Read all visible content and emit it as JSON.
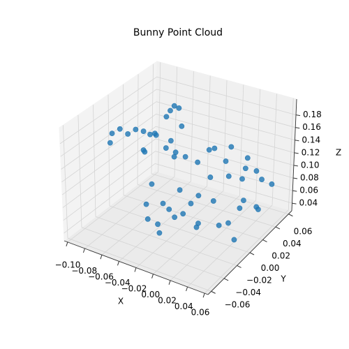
{
  "chart_data": {
    "type": "scatter3d",
    "title": "Bunny Point Cloud",
    "xlabel": "X",
    "ylabel": "Y",
    "zlabel": "Z",
    "color": "#1f77b4",
    "grid": true,
    "xlim": [
      -0.104,
      0.064
    ],
    "ylim": [
      -0.065,
      0.065
    ],
    "zlim": [
      0.028,
      0.205
    ],
    "xticks": [
      {
        "value": -0.1,
        "label": "−0.10"
      },
      {
        "value": -0.08,
        "label": "−0.08"
      },
      {
        "value": -0.06,
        "label": "−0.06"
      },
      {
        "value": -0.04,
        "label": "−0.04"
      },
      {
        "value": -0.02,
        "label": "−0.02"
      },
      {
        "value": 0.0,
        "label": "0.00"
      },
      {
        "value": 0.02,
        "label": "0.02"
      },
      {
        "value": 0.04,
        "label": "0.04"
      },
      {
        "value": 0.06,
        "label": "0.06"
      }
    ],
    "yticks": [
      {
        "value": -0.06,
        "label": "−0.06"
      },
      {
        "value": -0.04,
        "label": "−0.04"
      },
      {
        "value": -0.02,
        "label": "−0.02"
      },
      {
        "value": 0.0,
        "label": "0.00"
      },
      {
        "value": 0.02,
        "label": "0.02"
      },
      {
        "value": 0.04,
        "label": "0.04"
      },
      {
        "value": 0.06,
        "label": "0.06"
      }
    ],
    "zticks": [
      {
        "value": 0.04,
        "label": "0.04"
      },
      {
        "value": 0.06,
        "label": "0.06"
      },
      {
        "value": 0.08,
        "label": "0.08"
      },
      {
        "value": 0.1,
        "label": "0.10"
      },
      {
        "value": 0.12,
        "label": "0.12"
      },
      {
        "value": 0.14,
        "label": "0.14"
      },
      {
        "value": 0.16,
        "label": "0.16"
      },
      {
        "value": 0.18,
        "label": "0.18"
      }
    ],
    "x": [
      -0.07,
      -0.06,
      -0.06,
      -0.05,
      -0.05,
      -0.04,
      -0.04,
      -0.03,
      -0.03,
      -0.03,
      -0.02,
      -0.02,
      -0.01,
      -0.01,
      -0.01,
      0.0,
      0.0,
      0.0,
      0.01,
      0.01,
      0.01,
      0.02,
      0.02,
      0.02,
      0.03,
      0.03,
      0.03,
      0.04,
      0.04,
      0.05,
      0.05,
      -0.02,
      0.0,
      -0.045,
      0.015,
      0.035,
      -0.035,
      0.045,
      -0.08,
      -0.075,
      -0.07,
      -0.065,
      -0.06,
      -0.085,
      -0.07,
      -0.06,
      -0.07,
      -0.068,
      -0.065,
      -0.062,
      -0.1,
      -0.095,
      -0.09,
      -0.085,
      -0.08,
      -0.098
    ],
    "y": [
      0.02,
      0.0,
      0.04,
      -0.01,
      0.03,
      0.0,
      0.05,
      -0.02,
      0.02,
      0.04,
      0.0,
      0.05,
      -0.02,
      0.03,
      0.06,
      0.0,
      0.02,
      0.05,
      -0.01,
      0.03,
      0.06,
      0.0,
      0.04,
      0.05,
      0.01,
      0.03,
      0.06,
      0.02,
      0.04,
      0.03,
      0.05,
      -0.03,
      -0.02,
      0.015,
      0.015,
      0.045,
      0.035,
      0.0,
      0.02,
      0.03,
      0.04,
      0.02,
      0.035,
      0.035,
      0.01,
      0.05,
      0.04,
      0.043,
      0.045,
      0.048,
      0.0,
      0.005,
      0.01,
      0.015,
      0.02,
      -0.005
    ],
    "z": [
      0.06,
      0.05,
      0.09,
      0.04,
      0.11,
      0.06,
      0.08,
      0.05,
      0.12,
      0.04,
      0.09,
      0.11,
      0.07,
      0.13,
      0.06,
      0.04,
      0.1,
      0.12,
      0.06,
      0.12,
      0.08,
      0.09,
      0.04,
      0.11,
      0.05,
      0.1,
      0.07,
      0.08,
      0.05,
      0.06,
      0.08,
      0.05,
      0.08,
      0.035,
      0.035,
      0.1,
      0.03,
      0.04,
      0.11,
      0.13,
      0.1,
      0.14,
      0.12,
      0.12,
      0.12,
      0.13,
      0.15,
      0.158,
      0.165,
      0.16,
      0.145,
      0.15,
      0.14,
      0.145,
      0.14,
      0.135
    ]
  }
}
